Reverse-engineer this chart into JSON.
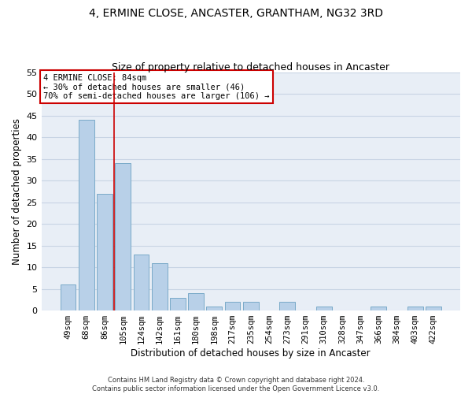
{
  "title": "4, ERMINE CLOSE, ANCASTER, GRANTHAM, NG32 3RD",
  "subtitle": "Size of property relative to detached houses in Ancaster",
  "xlabel": "Distribution of detached houses by size in Ancaster",
  "ylabel": "Number of detached properties",
  "categories": [
    "49sqm",
    "68sqm",
    "86sqm",
    "105sqm",
    "124sqm",
    "142sqm",
    "161sqm",
    "180sqm",
    "198sqm",
    "217sqm",
    "235sqm",
    "254sqm",
    "273sqm",
    "291sqm",
    "310sqm",
    "328sqm",
    "347sqm",
    "366sqm",
    "384sqm",
    "403sqm",
    "422sqm"
  ],
  "values": [
    6,
    44,
    27,
    34,
    13,
    11,
    3,
    4,
    1,
    2,
    2,
    0,
    2,
    0,
    1,
    0,
    0,
    1,
    0,
    1,
    1
  ],
  "bar_color": "#b8d0e8",
  "bar_edge_color": "#7aaac8",
  "grid_color": "#c8d4e4",
  "background_color": "#e8eef6",
  "vline_color": "#cc0000",
  "annotation_text": "4 ERMINE CLOSE: 84sqm\n← 30% of detached houses are smaller (46)\n70% of semi-detached houses are larger (106) →",
  "annotation_box_color": "#ffffff",
  "annotation_box_edge_color": "#cc0000",
  "ylim": [
    0,
    55
  ],
  "yticks": [
    0,
    5,
    10,
    15,
    20,
    25,
    30,
    35,
    40,
    45,
    50,
    55
  ],
  "footer": "Contains HM Land Registry data © Crown copyright and database right 2024.\nContains public sector information licensed under the Open Government Licence v3.0.",
  "title_fontsize": 10,
  "subtitle_fontsize": 9,
  "xlabel_fontsize": 8.5,
  "ylabel_fontsize": 8.5,
  "annotation_fontsize": 7.5,
  "tick_fontsize": 7.5,
  "ytick_fontsize": 8
}
